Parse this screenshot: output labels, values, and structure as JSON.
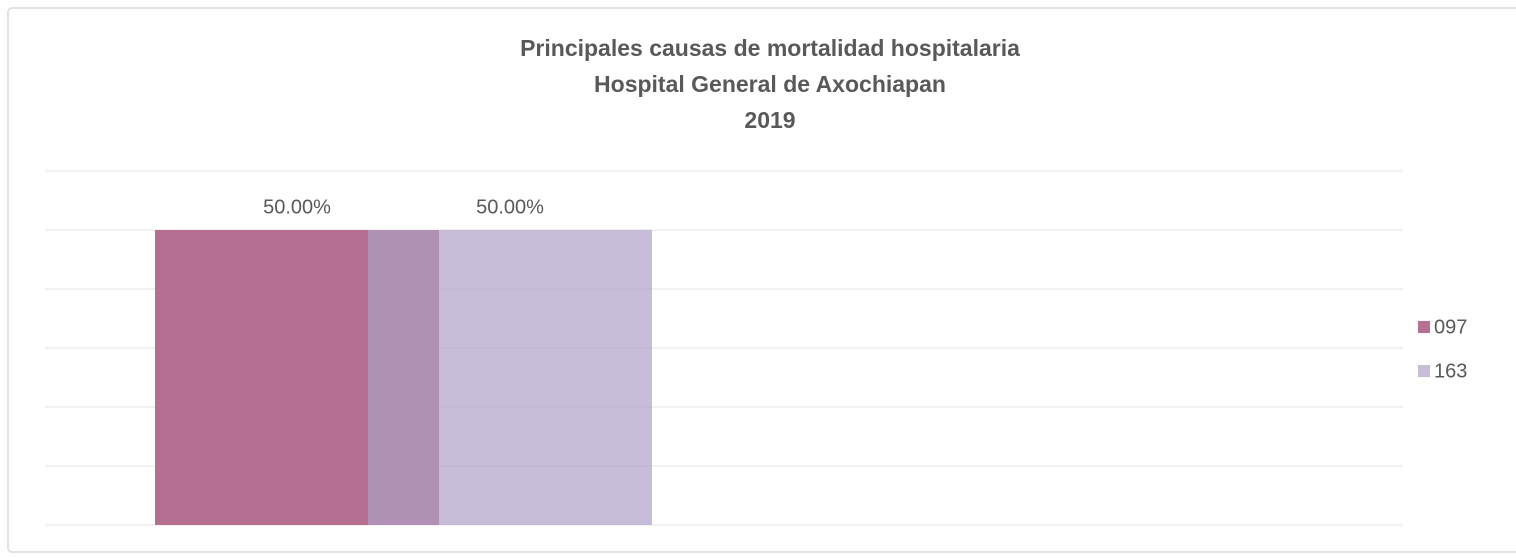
{
  "chart_data": {
    "type": "bar",
    "title": [
      "Principales causas de mortalidad hospitalaria",
      "Hospital General de Axochiapan",
      "2019"
    ],
    "categories": [
      null
    ],
    "series": [
      {
        "name": "097",
        "color": "#b56f90",
        "values": [
          50
        ],
        "value_labels": [
          "50.00%"
        ]
      },
      {
        "name": "163",
        "color": "#af9fc6",
        "values": [
          50
        ],
        "value_labels": [
          "50.00%"
        ]
      }
    ],
    "ylim": [
      0,
      60
    ],
    "yticks": [
      0,
      10,
      20,
      30,
      40,
      50,
      60
    ],
    "grid": true,
    "legend": "right"
  }
}
